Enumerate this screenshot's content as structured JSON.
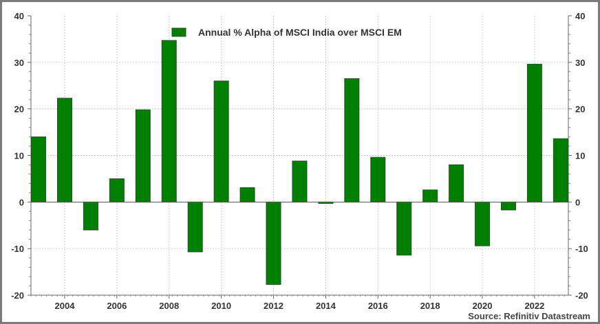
{
  "chart_data": {
    "type": "bar",
    "title": "",
    "legend": [
      "Annual % Alpha of MSCI India over MSCI EM"
    ],
    "legend_placement": "top-center",
    "source": "Source: Refinitiv Datastream",
    "xlabel": "",
    "ylabel": "",
    "categories": [
      2003,
      2004,
      2005,
      2006,
      2007,
      2008,
      2009,
      2010,
      2011,
      2012,
      2013,
      2014,
      2015,
      2016,
      2017,
      2018,
      2019,
      2020,
      2021,
      2022,
      2023
    ],
    "series": [
      {
        "name": "Annual % Alpha of MSCI India over MSCI EM",
        "color": "#008000",
        "values": [
          14.0,
          22.3,
          -6.0,
          5.0,
          19.8,
          34.7,
          -10.7,
          26.0,
          3.1,
          -17.7,
          8.8,
          -0.3,
          26.5,
          9.6,
          -11.4,
          2.6,
          8.0,
          -9.4,
          -1.7,
          29.6,
          13.6
        ]
      }
    ],
    "x_tick_labels": [
      "2004",
      "2006",
      "2008",
      "2010",
      "2012",
      "2014",
      "2016",
      "2018",
      "2020",
      "2022"
    ],
    "y_tick_labels": [
      "40",
      "30",
      "20",
      "10",
      "0",
      "-10",
      "-20"
    ],
    "ylim": [
      -20,
      40
    ],
    "grid": true
  }
}
